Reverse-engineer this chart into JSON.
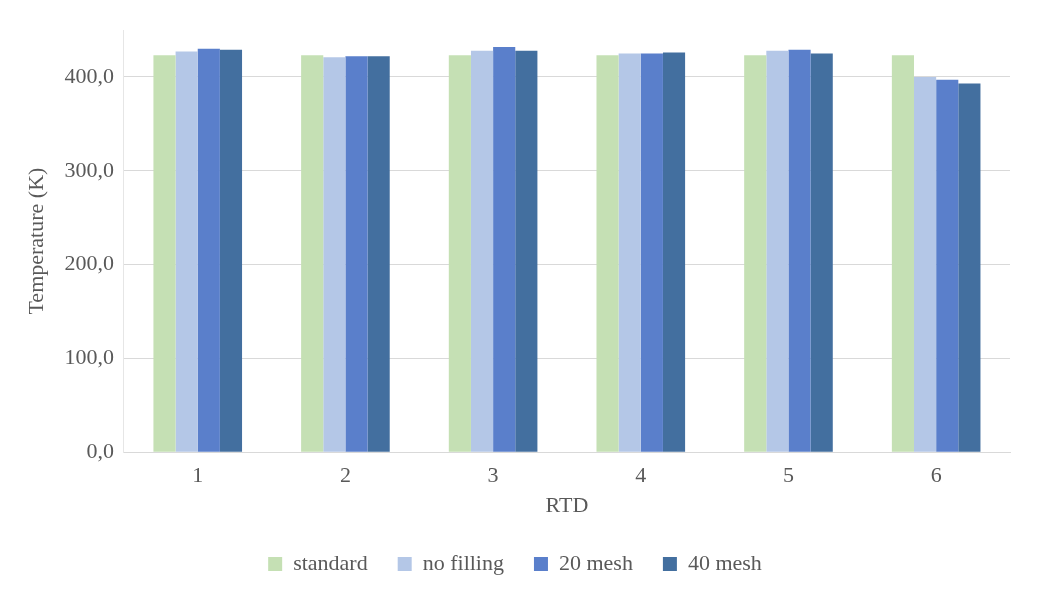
{
  "chart_data": {
    "type": "bar",
    "xlabel": "RTD",
    "ylabel": "Temperature (K)",
    "categories": [
      "1",
      "2",
      "3",
      "4",
      "5",
      "6"
    ],
    "series": [
      {
        "name": "standard",
        "color": "#c5e0b4",
        "values": [
          423,
          423,
          423,
          423,
          423,
          423
        ]
      },
      {
        "name": "no filling",
        "color": "#b4c7e7",
        "values": [
          427,
          421,
          428,
          425,
          428,
          400
        ]
      },
      {
        "name": "20 mesh",
        "color": "#5a7fcb",
        "values": [
          430,
          422,
          432,
          425,
          429,
          397
        ]
      },
      {
        "name": "40 mesh",
        "color": "#436f9f",
        "values": [
          429,
          422,
          428,
          426,
          425,
          393
        ]
      }
    ],
    "ylim": [
      0,
      450
    ],
    "yticks": [
      {
        "value": 0,
        "label": "0,0"
      },
      {
        "value": 100,
        "label": "100,0"
      },
      {
        "value": 200,
        "label": "200,0"
      },
      {
        "value": 300,
        "label": "300,0"
      },
      {
        "value": 400,
        "label": "400,0"
      }
    ],
    "grid": "y",
    "legend": "bottom"
  }
}
